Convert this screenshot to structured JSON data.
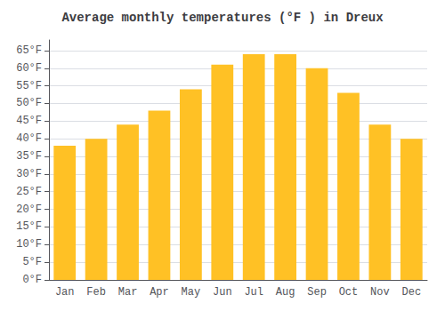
{
  "chart_data": {
    "type": "bar",
    "title": "Average monthly temperatures (°F ) in Dreux",
    "categories": [
      "Jan",
      "Feb",
      "Mar",
      "Apr",
      "May",
      "Jun",
      "Jul",
      "Aug",
      "Sep",
      "Oct",
      "Nov",
      "Dec"
    ],
    "values": [
      38,
      40,
      44,
      48,
      54,
      61,
      64,
      64,
      60,
      53,
      44,
      40
    ],
    "color": "#FFC125",
    "ylim": [
      0,
      68
    ],
    "yticks": [
      {
        "value": 0,
        "label": "0°F"
      },
      {
        "value": 5,
        "label": "5°F"
      },
      {
        "value": 10,
        "label": "10°F"
      },
      {
        "value": 15,
        "label": "15°F"
      },
      {
        "value": 20,
        "label": "20°F"
      },
      {
        "value": 25,
        "label": "25°F"
      },
      {
        "value": 30,
        "label": "30°F"
      },
      {
        "value": 35,
        "label": "35°F"
      },
      {
        "value": 40,
        "label": "40°F"
      },
      {
        "value": 45,
        "label": "45°F"
      },
      {
        "value": 50,
        "label": "50°F"
      },
      {
        "value": 55,
        "label": "55°F"
      },
      {
        "value": 60,
        "label": "60°F"
      },
      {
        "value": 65,
        "label": "65°F"
      }
    ],
    "grid": true
  }
}
